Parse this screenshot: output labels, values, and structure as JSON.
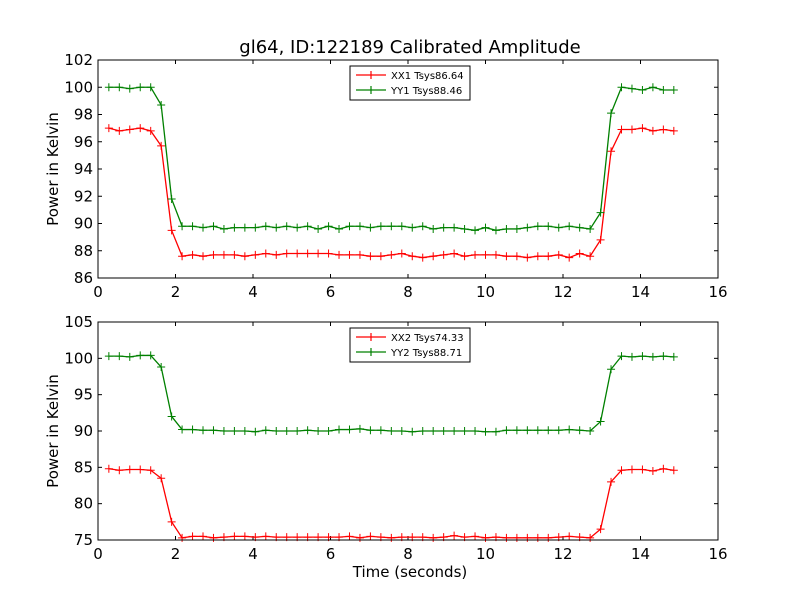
{
  "chart_data": [
    {
      "type": "line",
      "title": "gl64, ID:122189 Calibrated Amplitude",
      "xlabel": "",
      "ylabel": "Power in Kelvin",
      "xlim": [
        0,
        16
      ],
      "ylim": [
        86,
        102
      ],
      "xticks": [
        0,
        2,
        4,
        6,
        8,
        10,
        12,
        14,
        16
      ],
      "yticks": [
        86,
        88,
        90,
        92,
        94,
        96,
        98,
        100,
        102
      ],
      "legend_position": "top-center",
      "x_start": 0.28,
      "x_step": 0.27,
      "series": [
        {
          "name": "XX1 Tsys86.64",
          "color": "#ff0000",
          "values": [
            97.0,
            96.8,
            96.9,
            97.0,
            96.8,
            95.7,
            89.5,
            87.6,
            87.7,
            87.6,
            87.7,
            87.7,
            87.7,
            87.6,
            87.7,
            87.8,
            87.7,
            87.8,
            87.8,
            87.8,
            87.8,
            87.8,
            87.7,
            87.7,
            87.7,
            87.6,
            87.6,
            87.7,
            87.8,
            87.6,
            87.5,
            87.6,
            87.7,
            87.8,
            87.6,
            87.7,
            87.7,
            87.7,
            87.6,
            87.6,
            87.5,
            87.6,
            87.6,
            87.7,
            87.5,
            87.8,
            87.6,
            88.8,
            95.3,
            96.9,
            96.9,
            97.0,
            96.8,
            96.9,
            96.8
          ]
        },
        {
          "name": "YY1 Tsys88.46",
          "color": "#008000",
          "values": [
            100.0,
            100.0,
            99.9,
            100.0,
            100.0,
            98.7,
            91.8,
            89.8,
            89.8,
            89.7,
            89.8,
            89.6,
            89.7,
            89.7,
            89.7,
            89.8,
            89.7,
            89.8,
            89.7,
            89.8,
            89.6,
            89.8,
            89.6,
            89.8,
            89.8,
            89.7,
            89.8,
            89.8,
            89.8,
            89.7,
            89.8,
            89.6,
            89.7,
            89.7,
            89.6,
            89.5,
            89.7,
            89.5,
            89.6,
            89.6,
            89.7,
            89.8,
            89.8,
            89.7,
            89.8,
            89.7,
            89.6,
            90.8,
            98.1,
            100.0,
            99.9,
            99.8,
            100.0,
            99.8,
            99.8
          ]
        }
      ]
    },
    {
      "type": "line",
      "title": "",
      "xlabel": "Time (seconds)",
      "ylabel": "Power in Kelvin",
      "xlim": [
        0,
        16
      ],
      "ylim": [
        75,
        105
      ],
      "xticks": [
        0,
        2,
        4,
        6,
        8,
        10,
        12,
        14,
        16
      ],
      "yticks": [
        75,
        80,
        85,
        90,
        95,
        100,
        105
      ],
      "legend_position": "top-center",
      "x_start": 0.28,
      "x_step": 0.27,
      "series": [
        {
          "name": "XX2 Tsys74.33",
          "color": "#ff0000",
          "values": [
            84.8,
            84.6,
            84.7,
            84.7,
            84.6,
            83.5,
            77.5,
            75.3,
            75.5,
            75.5,
            75.3,
            75.4,
            75.5,
            75.5,
            75.4,
            75.5,
            75.4,
            75.4,
            75.4,
            75.4,
            75.4,
            75.4,
            75.4,
            75.5,
            75.3,
            75.5,
            75.4,
            75.3,
            75.4,
            75.4,
            75.4,
            75.3,
            75.4,
            75.6,
            75.4,
            75.5,
            75.3,
            75.4,
            75.3,
            75.3,
            75.3,
            75.3,
            75.3,
            75.4,
            75.5,
            75.4,
            75.3,
            76.5,
            83.0,
            84.6,
            84.7,
            84.7,
            84.5,
            84.8,
            84.6
          ]
        },
        {
          "name": "YY2 Tsys88.71",
          "color": "#008000",
          "values": [
            100.3,
            100.3,
            100.2,
            100.4,
            100.4,
            98.8,
            92.0,
            90.2,
            90.2,
            90.1,
            90.1,
            90.0,
            90.0,
            90.0,
            89.9,
            90.1,
            90.0,
            90.0,
            90.0,
            90.1,
            90.0,
            90.0,
            90.2,
            90.2,
            90.3,
            90.1,
            90.1,
            90.0,
            90.0,
            89.9,
            90.0,
            90.0,
            90.0,
            90.0,
            90.0,
            90.0,
            89.9,
            89.9,
            90.1,
            90.1,
            90.1,
            90.1,
            90.1,
            90.1,
            90.2,
            90.1,
            90.0,
            91.3,
            98.5,
            100.3,
            100.2,
            100.3,
            100.2,
            100.3,
            100.2
          ]
        }
      ]
    }
  ]
}
